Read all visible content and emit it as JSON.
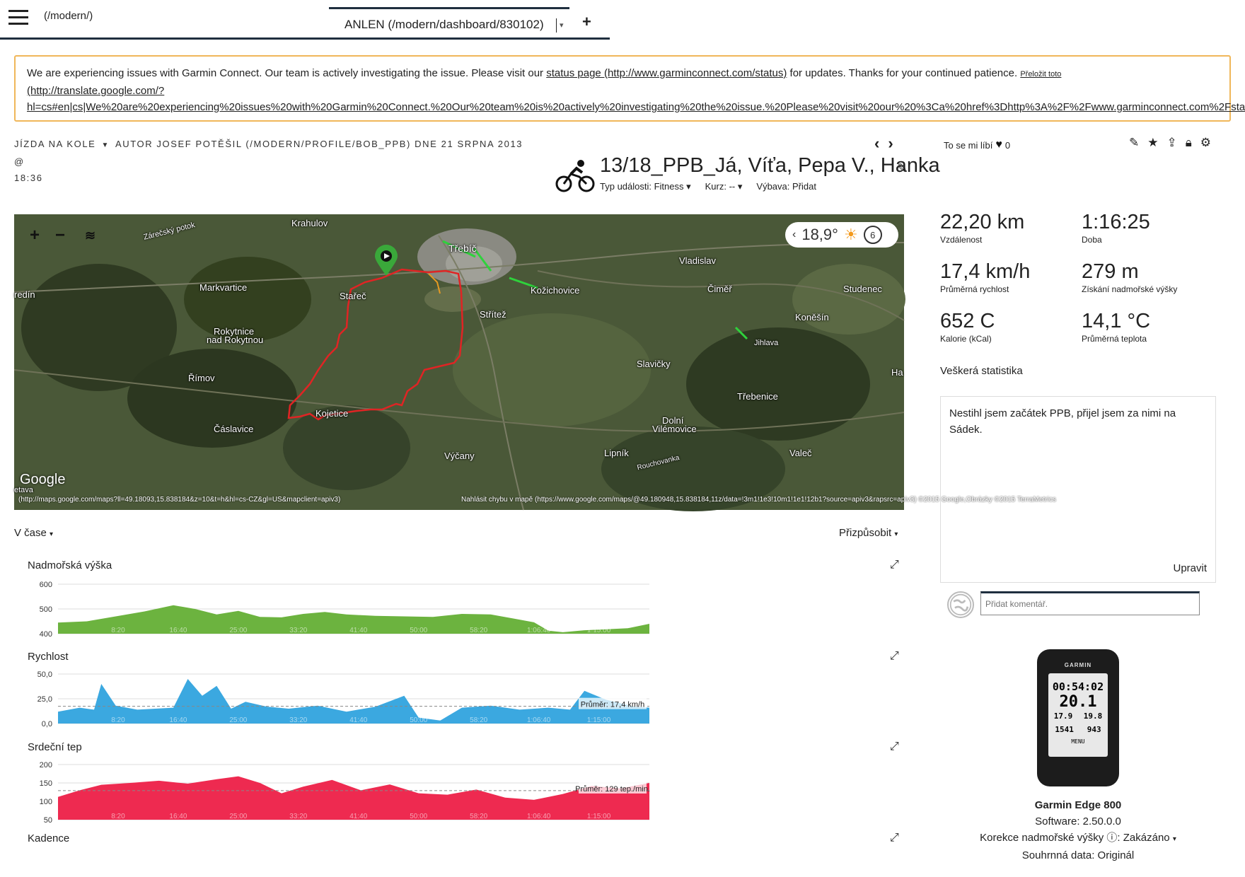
{
  "topbar": {
    "home_link": "(/modern/)",
    "active_tab": "ANLEN (/modern/dashboard/830102)",
    "add_label": "+"
  },
  "banner": {
    "text_before": "We are experiencing issues with Garmin Connect. Our team is actively investigating the issue. Please visit our ",
    "status_link": "status page (http://www.garminconnect.com/status)",
    "text_after": " for updates. Thanks for your continued patience. ",
    "translate_link": "Přeložit toto",
    "url_line1": "(http://translate.google.com/?",
    "url_line2": "hl=cs#en|cs|We%20are%20experiencing%20issues%20with%20Garmin%20Connect.%20Our%20team%20is%20actively%20investigating%20the%20issue.%20Please%20visit%20our%20%3Ca%20href%3Dhttp%3A%2F%2Fwww.garminconnect.com%2Fsta"
  },
  "activity": {
    "type": "JÍZDA NA KOLE",
    "author_line": "AUTOR JOSEF POTĚŠIL (/MODERN/PROFILE/BOB_PPB) DNE 21 SRPNA 2013 @",
    "time": "18:36",
    "title": "13/18_PPB_Já, Víťa, Pepa V., Hanka",
    "event_type": "Typ události: Fitness",
    "course": "Kurz: --",
    "gear": "Výbava: Přidat"
  },
  "map": {
    "temperature": "18,9°",
    "wind": "6",
    "labels": [
      {
        "t": "Krahulov"
      },
      {
        "t": "Třebíč"
      },
      {
        "t": "Vladislav"
      },
      {
        "t": "Markvartice"
      },
      {
        "t": "Stařeč"
      },
      {
        "t": "Kožichovice"
      },
      {
        "t": "Čiměř"
      },
      {
        "t": "Studenec"
      },
      {
        "t": "Střítež"
      },
      {
        "t": "Koněšín"
      },
      {
        "t": "Rokytnice"
      },
      {
        "t": "nad Rokytnou"
      },
      {
        "t": "Jihlava"
      },
      {
        "t": "Slavičky"
      },
      {
        "t": "Římov"
      },
      {
        "t": "Třebenice"
      },
      {
        "t": "Kojetice"
      },
      {
        "t": "Dolní"
      },
      {
        "t": "Vilémovice"
      },
      {
        "t": "Čáslavice"
      },
      {
        "t": "Lipník"
      },
      {
        "t": "Valeč"
      },
      {
        "t": "Výčany"
      },
      {
        "t": "Ha"
      },
      {
        "t": "redín"
      },
      {
        "t": "Zárečský potok"
      },
      {
        "t": "Rouchovanka"
      },
      {
        "t": "etava"
      }
    ],
    "google": "Google",
    "attribution_left": "(http://maps.google.com/maps?ll=49.18093,15.838184&z=10&t=h&hl=cs-CZ&gl=US&mapclient=apiv3)",
    "attribution_right": "Nahlásit chybu v mapě (https://www.google.com/maps/@49.180948,15.838184,11z/data=!3m1!1e3!10m1!1e1!12b1?source=apiv3&rapsrc=apiv3) ©2015 Google,Obrázky ©2015 TerraMetrics"
  },
  "charts_toolbar": {
    "time_mode": "V čase",
    "fit": "Přizpůsobit"
  },
  "charts": {
    "elevation": {
      "title": "Nadmořská výška",
      "color": "#6cb33f",
      "y_ticks": [
        "600",
        "500",
        "400"
      ]
    },
    "speed": {
      "title": "Rychlost",
      "color": "#3ba8e0",
      "y_ticks": [
        "50,0",
        "25,0",
        "0,0"
      ],
      "avg_label": "Průměr: 17,4 km/h"
    },
    "hr": {
      "title": "Srdeční tep",
      "color": "#ee2a50",
      "y_ticks": [
        "200",
        "150",
        "100",
        "50"
      ],
      "avg_label": "Průměr: 129 tep./min."
    },
    "cadence": {
      "title": "Kadence"
    },
    "x_ticks": [
      "8:20",
      "16:40",
      "25:00",
      "33:20",
      "41:40",
      "50:00",
      "58:20",
      "1:06:40",
      "1:15:00"
    ]
  },
  "chart_data": [
    {
      "type": "area",
      "title": "Nadmořská výška",
      "ylim": [
        400,
        600
      ],
      "y_ticks": [
        400,
        500,
        600
      ],
      "x_ticks": [
        "8:20",
        "16:40",
        "25:00",
        "33:20",
        "41:40",
        "50:00",
        "58:20",
        "1:06:40",
        "1:15:00"
      ],
      "x_minutes": [
        0,
        4,
        8,
        12,
        16,
        19,
        22,
        25,
        28,
        31,
        34,
        37,
        40,
        44,
        48,
        52,
        56,
        60,
        63,
        66,
        68,
        70,
        73,
        76,
        79,
        82
      ],
      "values": [
        445,
        450,
        470,
        490,
        515,
        500,
        478,
        492,
        468,
        466,
        480,
        488,
        478,
        472,
        470,
        468,
        480,
        478,
        462,
        446,
        412,
        406,
        414,
        418,
        422,
        440
      ]
    },
    {
      "type": "area",
      "title": "Rychlost",
      "ylim": [
        0,
        50
      ],
      "y_ticks": [
        0,
        25,
        50
      ],
      "x_ticks": [
        "8:20",
        "16:40",
        "25:00",
        "33:20",
        "41:40",
        "50:00",
        "58:20",
        "1:06:40",
        "1:15:00"
      ],
      "x_minutes": [
        0,
        3,
        5,
        6,
        8,
        11,
        16,
        18,
        20,
        22,
        24,
        26,
        29,
        32,
        36,
        40,
        44,
        48,
        50,
        53,
        56,
        60,
        64,
        68,
        71,
        73,
        76,
        80,
        82
      ],
      "values": [
        12,
        16,
        14,
        40,
        18,
        14,
        16,
        45,
        28,
        38,
        15,
        22,
        17,
        15,
        18,
        12,
        17,
        28,
        6,
        3,
        16,
        18,
        14,
        16,
        14,
        33,
        24,
        17,
        16
      ],
      "average": 17.4
    },
    {
      "type": "area",
      "title": "Srdeční tep",
      "ylim": [
        50,
        200
      ],
      "y_ticks": [
        50,
        100,
        150,
        200
      ],
      "x_ticks": [
        "8:20",
        "16:40",
        "25:00",
        "33:20",
        "41:40",
        "50:00",
        "58:20",
        "1:06:40",
        "1:15:00"
      ],
      "x_minutes": [
        0,
        3,
        6,
        10,
        14,
        18,
        22,
        25,
        28,
        31,
        34,
        38,
        42,
        46,
        50,
        54,
        58,
        62,
        66,
        70,
        74,
        78,
        82
      ],
      "values": [
        112,
        130,
        145,
        150,
        156,
        148,
        160,
        168,
        150,
        122,
        140,
        158,
        130,
        146,
        122,
        118,
        132,
        110,
        104,
        120,
        142,
        135,
        150
      ],
      "average": 129
    },
    {
      "type": "area",
      "title": "Kadence"
    }
  ],
  "right": {
    "like_label": "To se mi líbí",
    "like_count": "0",
    "stats": [
      {
        "value": "22,20 km",
        "label": "Vzdálenost"
      },
      {
        "value": "1:16:25",
        "label": "Doba"
      },
      {
        "value": "17,4 km/h",
        "label": "Průměrná rychlost"
      },
      {
        "value": "279 m",
        "label": "Získání nadmořské výšky"
      },
      {
        "value": "652 C",
        "label": "Kalorie (kCal)"
      },
      {
        "value": "14,1 °C",
        "label": "Průměrná teplota"
      }
    ],
    "all_stats": "Veškerá statistika",
    "notes": "Nestihl jsem začátek PPB, přijel jsem za nimi na Sádek.",
    "edit": "Upravit",
    "comment_placeholder": "Přidat komentář.",
    "device": {
      "brand": "GARMIN",
      "screen_time": "00:54:02",
      "screen_speed": "20.1",
      "screen_dist": "17.9",
      "screen_avg": "19.8",
      "screen_elev": "1541",
      "screen_ascent": "943",
      "menu": "MENU",
      "name": "Garmin Edge 800",
      "software": "Software: 2.50.0.0",
      "elev_corr": "Korekce nadmořské výšky",
      "elev_corr_value": "Zakázáno",
      "summary": "Souhrnná data: Originál"
    }
  }
}
